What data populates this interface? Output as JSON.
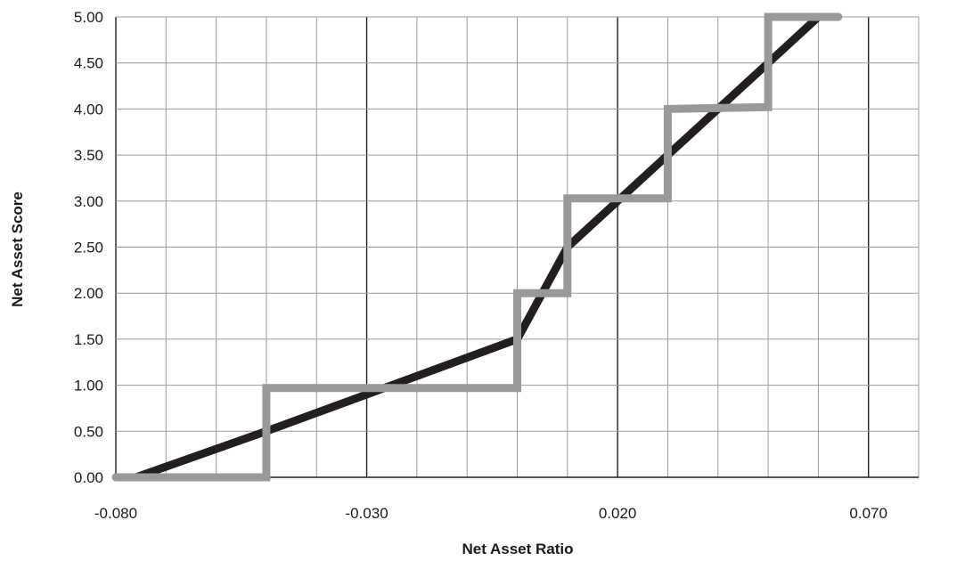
{
  "chart_data": {
    "type": "line",
    "title": "",
    "xlabel": "Net Asset Ratio",
    "ylabel": "Net Asset Score",
    "xlim": [
      -0.08,
      0.08
    ],
    "ylim": [
      0.0,
      5.0
    ],
    "grid": true,
    "x_ticks": [
      "-0.080",
      "-0.030",
      "0.020",
      "0.070"
    ],
    "y_ticks": [
      "0.00",
      "0.50",
      "1.00",
      "1.50",
      "2.00",
      "2.50",
      "3.00",
      "3.50",
      "4.00",
      "4.50",
      "5.00"
    ],
    "series": [
      {
        "color": "#231f20",
        "style": "continuous",
        "x": [
          -0.076,
          -0.05,
          0.0,
          0.01,
          0.02,
          0.04,
          0.06
        ],
        "y": [
          0.0,
          0.5,
          1.5,
          2.5,
          3.0,
          4.0,
          5.0
        ]
      },
      {
        "color": "#999999",
        "style": "step",
        "x": [
          -0.08,
          -0.05,
          -0.05,
          0.0,
          0.0,
          0.01,
          0.01,
          0.03,
          0.03,
          0.05,
          0.05,
          0.064
        ],
        "y": [
          0.0,
          0.0,
          0.97,
          0.97,
          2.0,
          2.0,
          3.03,
          3.03,
          4.0,
          4.02,
          5.0,
          5.0
        ]
      }
    ]
  }
}
